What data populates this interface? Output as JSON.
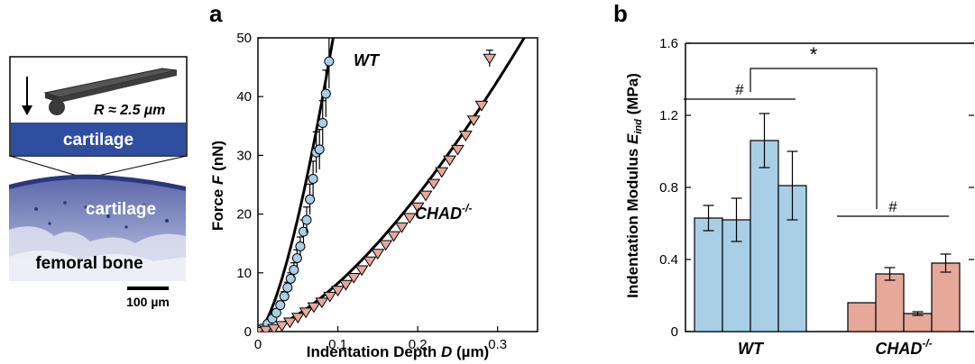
{
  "illustration": {
    "radius_label": "R ≈ 2.5 µm",
    "cartilage_top": "cartilage",
    "cartilage_bottom": "cartilage",
    "bone": "femoral bone",
    "scale_bar": "100 µm"
  },
  "chart_data": [
    {
      "panel": "a",
      "type": "scatter",
      "xlabel_main": "Indentation Depth ",
      "xlabel_var": "D",
      "xlabel_unit": " (µm)",
      "ylabel_main": "Force ",
      "ylabel_var": "F",
      "ylabel_unit": " (nN)",
      "xlim": [
        0,
        0.35
      ],
      "ylim": [
        0,
        50
      ],
      "xticks": [
        0,
        0.1,
        0.2,
        0.3
      ],
      "xtick_labels": [
        "0",
        "0.1",
        "0.2",
        "0.3"
      ],
      "yticks": [
        0,
        10,
        20,
        30,
        40,
        50
      ],
      "ytick_labels": [
        "0",
        "10",
        "20",
        "30",
        "40",
        "50"
      ],
      "series": [
        {
          "name": "WT",
          "marker": "circle",
          "color": "#a8cfe6",
          "x": [
            0.005,
            0.012,
            0.018,
            0.023,
            0.028,
            0.033,
            0.037,
            0.041,
            0.045,
            0.049,
            0.053,
            0.057,
            0.061,
            0.065,
            0.069,
            0.073,
            0.077,
            0.081,
            0.085,
            0.089
          ],
          "y": [
            0.5,
            1.3,
            2.2,
            3.2,
            4.5,
            6.0,
            7.5,
            9.0,
            10.5,
            12.5,
            14.5,
            17.0,
            19.0,
            22.5,
            26.0,
            30.5,
            31.0,
            35.5,
            40.5,
            46.0
          ],
          "err": [
            0.3,
            0.4,
            0.5,
            0.6,
            0.7,
            0.8,
            0.9,
            1.0,
            1.2,
            1.4,
            1.6,
            2.0,
            2.2,
            2.6,
            3.0,
            3.5,
            3.4,
            3.8,
            4.0,
            4.6
          ]
        },
        {
          "name": "CHAD-/-",
          "label_base": "CHAD",
          "label_sup": "-/-",
          "marker": "triangle-down",
          "color": "#e6a899",
          "x": [
            0.0,
            0.01,
            0.02,
            0.03,
            0.04,
            0.05,
            0.06,
            0.07,
            0.08,
            0.09,
            0.1,
            0.11,
            0.12,
            0.13,
            0.14,
            0.15,
            0.16,
            0.17,
            0.18,
            0.19,
            0.2,
            0.21,
            0.22,
            0.23,
            0.24,
            0.25,
            0.26,
            0.27,
            0.28,
            0.29
          ],
          "y": [
            0.0,
            0.2,
            0.5,
            1.0,
            1.6,
            2.4,
            3.3,
            4.2,
            5.0,
            6.0,
            7.0,
            8.0,
            9.2,
            10.5,
            12.0,
            13.3,
            14.8,
            16.3,
            17.8,
            19.4,
            21.2,
            23.2,
            25.2,
            27.2,
            29.2,
            31.0,
            33.4,
            36.0,
            38.5,
            46.5
          ],
          "err": [
            0,
            0,
            0,
            0,
            0,
            0,
            0,
            0,
            0,
            0,
            0,
            0,
            0,
            0,
            0,
            0,
            0,
            0,
            0,
            0,
            0,
            0,
            0,
            0,
            0,
            0,
            0,
            0,
            0,
            1.4
          ]
        }
      ]
    },
    {
      "panel": "b",
      "type": "bar",
      "ylabel_main": "Indentation Modulus ",
      "ylabel_var": "E",
      "ylabel_sub": "ind",
      "ylabel_unit": " (MPa)",
      "ylim": [
        0,
        1.6
      ],
      "yticks": [
        0,
        0.4,
        0.8,
        1.2,
        1.6
      ],
      "ytick_labels": [
        "0",
        "0.4",
        "0.8",
        "1.2",
        "1.6"
      ],
      "groups": [
        {
          "label": "WT",
          "label_base": "WT",
          "label_sup": "",
          "color": "#a8cfe6",
          "values": [
            0.63,
            0.62,
            1.06,
            0.81
          ],
          "err": [
            0.07,
            0.12,
            0.15,
            0.19
          ]
        },
        {
          "label": "CHAD-/-",
          "label_base": "CHAD",
          "label_sup": "-/-",
          "color": "#e6a899",
          "values": [
            0.16,
            0.32,
            0.1,
            0.38
          ],
          "err": [
            0.0,
            0.035,
            0.01,
            0.05
          ]
        }
      ],
      "annotations": {
        "group_sig": "#",
        "between_sig": "*"
      }
    }
  ]
}
